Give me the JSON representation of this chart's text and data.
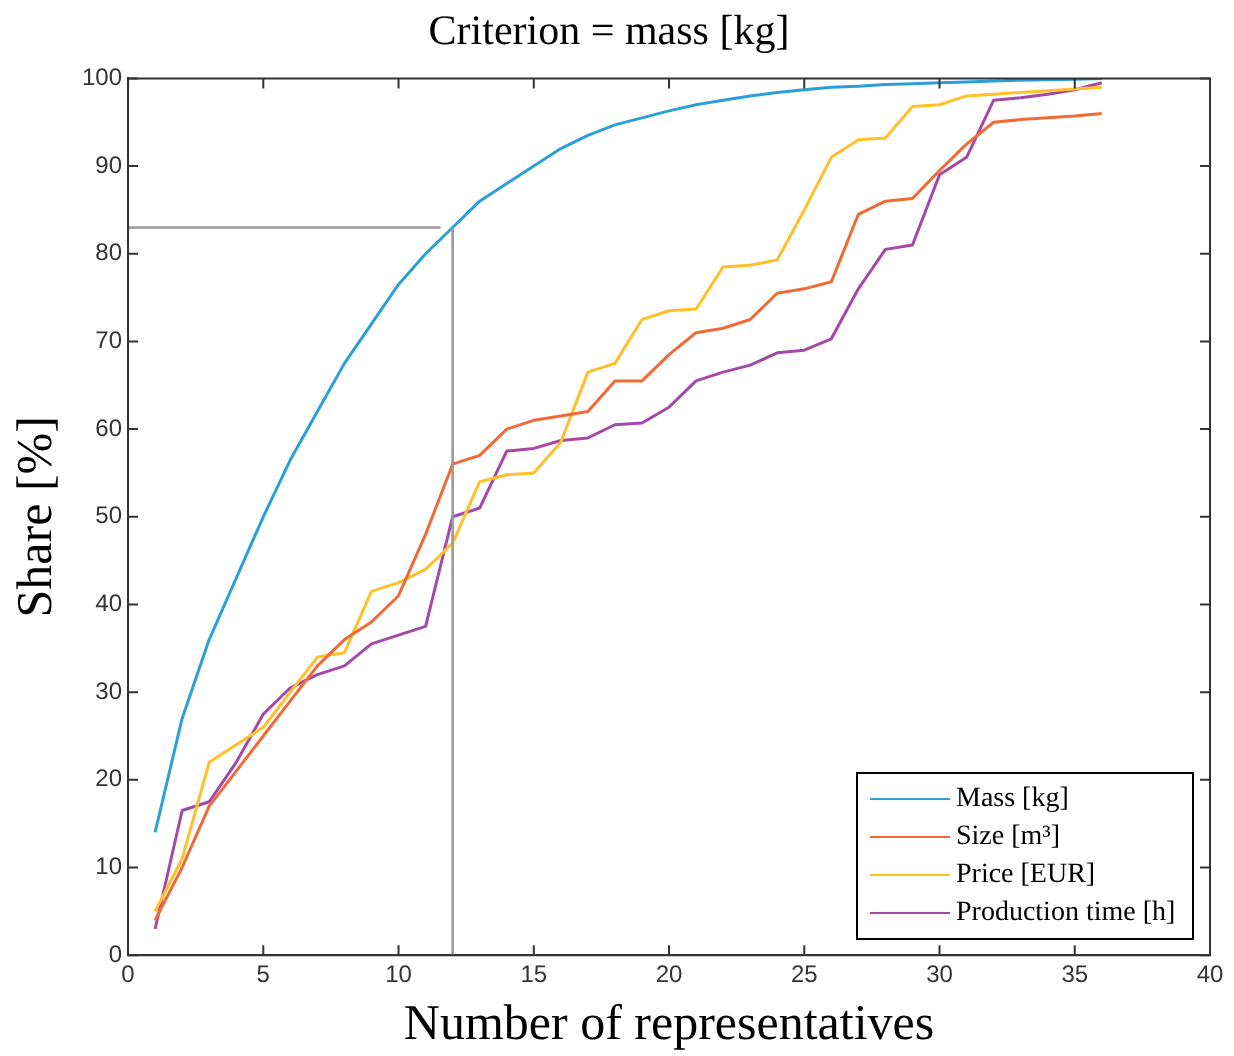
{
  "chart_data": {
    "type": "line",
    "title": "Criterion = mass [kg]",
    "xlabel": "Number of representatives",
    "ylabel": "Share [%]",
    "x": [
      1,
      2,
      3,
      4,
      5,
      6,
      7,
      8,
      9,
      10,
      11,
      12,
      13,
      14,
      15,
      16,
      17,
      18,
      19,
      20,
      21,
      22,
      23,
      24,
      25,
      26,
      27,
      28,
      29,
      30,
      31,
      32,
      33,
      34,
      35,
      36
    ],
    "series": [
      {
        "name": "Mass [kg]",
        "color": "#2a9fd8",
        "values": [
          14,
          27,
          36,
          43,
          50,
          56.5,
          62,
          67.5,
          72,
          76.5,
          80,
          83,
          86,
          88,
          90,
          92,
          93.5,
          94.7,
          95.5,
          96.3,
          97,
          97.5,
          98,
          98.4,
          98.7,
          99,
          99.1,
          99.3,
          99.4,
          99.5,
          99.6,
          99.7,
          99.8,
          99.85,
          99.9,
          100
        ]
      },
      {
        "name": "Size [m³]",
        "color": "#f06a35",
        "values": [
          4,
          10,
          17,
          21,
          25,
          29,
          33,
          36,
          38,
          41,
          48,
          56,
          57,
          60,
          61,
          61.5,
          62,
          65.5,
          65.5,
          68.5,
          71,
          71.5,
          72.5,
          75.5,
          76,
          76.8,
          84.5,
          86,
          86.3,
          89.5,
          92.5,
          95,
          95.3,
          95.5,
          95.7,
          96
        ]
      },
      {
        "name": "Price [EUR]",
        "color": "#ffc02a",
        "values": [
          5,
          11,
          22,
          24,
          26,
          30,
          34,
          34.5,
          41.5,
          42.5,
          44,
          47,
          54,
          54.8,
          55,
          58.5,
          66.5,
          67.5,
          72.5,
          73.5,
          73.7,
          78.5,
          78.7,
          79.3,
          85,
          91,
          93,
          93.2,
          96.8,
          97,
          98,
          98.2,
          98.4,
          98.6,
          98.8,
          99
        ]
      },
      {
        "name": "Production time [h]",
        "color": "#a449a8",
        "values": [
          3,
          16.5,
          17.5,
          22,
          27.5,
          30.5,
          32,
          33,
          35.5,
          36.5,
          37.5,
          50,
          51,
          57.5,
          57.8,
          58.7,
          59,
          60.5,
          60.7,
          62.5,
          65.5,
          66.5,
          67.3,
          68.7,
          69,
          70.3,
          76,
          80.5,
          81,
          89,
          91,
          97.5,
          97.8,
          98.2,
          98.7,
          99.5
        ]
      }
    ],
    "xlim": [
      0,
      40
    ],
    "xticks": [
      0,
      5,
      10,
      15,
      20,
      25,
      30,
      35,
      40
    ],
    "ylim": [
      0,
      100
    ],
    "yticks": [
      0,
      10,
      20,
      30,
      40,
      50,
      60,
      70,
      80,
      90,
      100
    ],
    "ref_lines": [
      {
        "axis": "x",
        "value": 12,
        "color": "#999999"
      },
      {
        "axis": "y",
        "value": 83,
        "color": "#999999"
      }
    ],
    "legend": "bottom right",
    "grid": false,
    "marker": "none",
    "line_style": "solid"
  }
}
